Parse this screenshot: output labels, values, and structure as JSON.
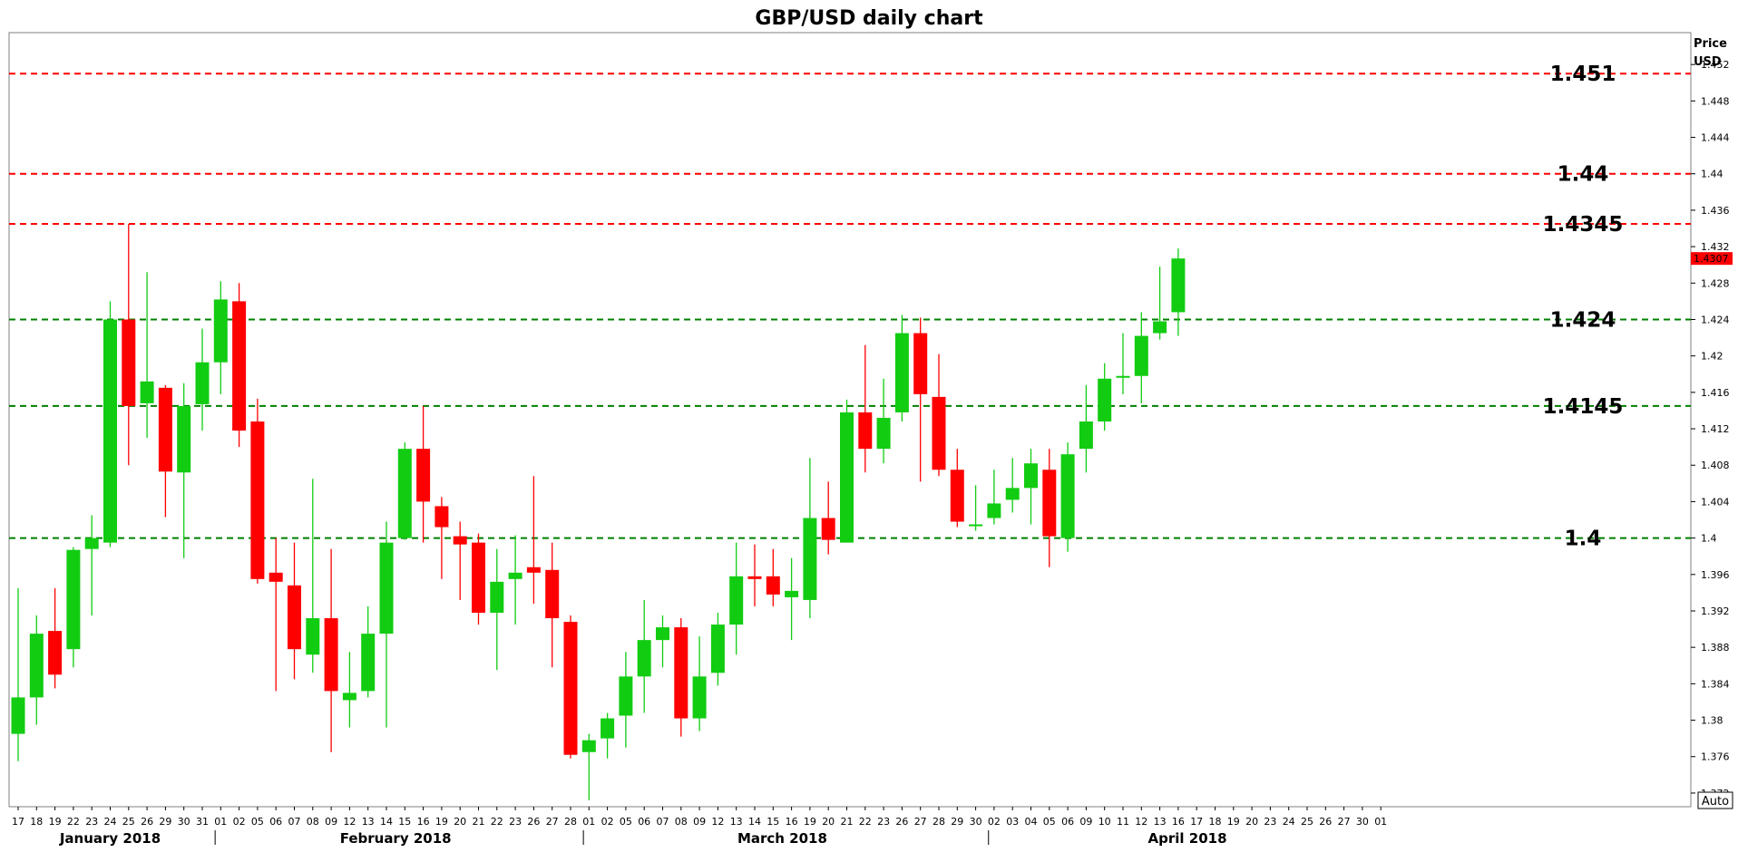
{
  "chart_data": {
    "type": "candlestick",
    "title": "GBP/USD daily chart",
    "ylabel": "Price\nUSD",
    "ylabel_line1": "Price",
    "ylabel_line2": "USD",
    "ylim": [
      1.3705,
      1.4555
    ],
    "y_ticks": [
      "1.372",
      "1.376",
      "1.38",
      "1.384",
      "1.388",
      "1.392",
      "1.396",
      "1.4",
      "1.404",
      "1.408",
      "1.412",
      "1.416",
      "1.42",
      "1.424",
      "1.428",
      "1.432",
      "1.436",
      "1.44",
      "1.444",
      "1.448",
      "1.452"
    ],
    "current_price": "1.4307",
    "auto_label": "Auto",
    "colors": {
      "up": "#12cc12",
      "down": "#ff0000",
      "support": "#008000",
      "resistance": "#ff0000",
      "current": "#ff0000"
    },
    "levels": [
      {
        "value": 1.451,
        "label": "1.451",
        "type": "resistance"
      },
      {
        "value": 1.44,
        "label": "1.44",
        "type": "resistance"
      },
      {
        "value": 1.4345,
        "label": "1.4345",
        "type": "resistance"
      },
      {
        "value": 1.424,
        "label": "1.424",
        "type": "support"
      },
      {
        "value": 1.4145,
        "label": "1.4145",
        "type": "support"
      },
      {
        "value": 1.4,
        "label": "1.4",
        "type": "support"
      }
    ],
    "x_labels": [
      "17",
      "18",
      "19",
      "22",
      "23",
      "24",
      "25",
      "26",
      "29",
      "30",
      "31",
      "01",
      "02",
      "05",
      "06",
      "07",
      "08",
      "09",
      "12",
      "13",
      "14",
      "15",
      "16",
      "19",
      "20",
      "21",
      "22",
      "23",
      "26",
      "27",
      "28",
      "01",
      "02",
      "05",
      "06",
      "07",
      "08",
      "09",
      "12",
      "13",
      "14",
      "15",
      "16",
      "19",
      "20",
      "21",
      "22",
      "23",
      "26",
      "27",
      "28",
      "29",
      "30",
      "02",
      "03",
      "04",
      "05",
      "06",
      "09",
      "10",
      "11",
      "12",
      "13",
      "16",
      "17",
      "18",
      "19",
      "20",
      "23",
      "24",
      "25",
      "26",
      "27",
      "30",
      "01"
    ],
    "months": [
      {
        "label": "January 2018",
        "start": 0,
        "end": 10
      },
      {
        "label": "February 2018",
        "start": 11,
        "end": 30
      },
      {
        "label": "March 2018",
        "start": 31,
        "end": 52
      },
      {
        "label": "April 2018",
        "start": 53,
        "end": 74
      }
    ],
    "candles": [
      {
        "date": "Jan 17",
        "open": 1.3785,
        "high": 1.3945,
        "low": 1.3755,
        "close": 1.3825
      },
      {
        "date": "Jan 18",
        "open": 1.3825,
        "high": 1.3915,
        "low": 1.3795,
        "close": 1.3895
      },
      {
        "date": "Jan 19",
        "open": 1.3898,
        "high": 1.3945,
        "low": 1.3835,
        "close": 1.385
      },
      {
        "date": "Jan 22",
        "open": 1.3878,
        "high": 1.399,
        "low": 1.3858,
        "close": 1.3987
      },
      {
        "date": "Jan 23",
        "open": 1.3988,
        "high": 1.4025,
        "low": 1.3915,
        "close": 1.4
      },
      {
        "date": "Jan 24",
        "open": 1.3995,
        "high": 1.426,
        "low": 1.399,
        "close": 1.424
      },
      {
        "date": "Jan 25",
        "open": 1.424,
        "high": 1.4345,
        "low": 1.408,
        "close": 1.4145
      },
      {
        "date": "Jan 26",
        "open": 1.4148,
        "high": 1.4292,
        "low": 1.411,
        "close": 1.4172
      },
      {
        "date": "Jan 29",
        "open": 1.4165,
        "high": 1.4168,
        "low": 1.4023,
        "close": 1.4073
      },
      {
        "date": "Jan 30",
        "open": 1.4072,
        "high": 1.417,
        "low": 1.3978,
        "close": 1.4145
      },
      {
        "date": "Jan 31",
        "open": 1.4147,
        "high": 1.423,
        "low": 1.4118,
        "close": 1.4193
      },
      {
        "date": "Feb 01",
        "open": 1.4193,
        "high": 1.4282,
        "low": 1.4158,
        "close": 1.4262
      },
      {
        "date": "Feb 02",
        "open": 1.426,
        "high": 1.428,
        "low": 1.41,
        "close": 1.4118
      },
      {
        "date": "Feb 05",
        "open": 1.4128,
        "high": 1.4153,
        "low": 1.395,
        "close": 1.3955
      },
      {
        "date": "Feb 06",
        "open": 1.3962,
        "high": 1.4,
        "low": 1.3832,
        "close": 1.3952
      },
      {
        "date": "Feb 07",
        "open": 1.3948,
        "high": 1.3995,
        "low": 1.3845,
        "close": 1.3878
      },
      {
        "date": "Feb 08",
        "open": 1.3872,
        "high": 1.4065,
        "low": 1.3852,
        "close": 1.3912
      },
      {
        "date": "Feb 09",
        "open": 1.3912,
        "high": 1.3988,
        "low": 1.3765,
        "close": 1.3832
      },
      {
        "date": "Feb 12",
        "open": 1.3822,
        "high": 1.3875,
        "low": 1.3792,
        "close": 1.383
      },
      {
        "date": "Feb 13",
        "open": 1.3832,
        "high": 1.3925,
        "low": 1.3825,
        "close": 1.3895
      },
      {
        "date": "Feb 14",
        "open": 1.3895,
        "high": 1.4018,
        "low": 1.3792,
        "close": 1.3995
      },
      {
        "date": "Feb 15",
        "open": 1.4,
        "high": 1.4105,
        "low": 1.3998,
        "close": 1.4098
      },
      {
        "date": "Feb 16",
        "open": 1.4098,
        "high": 1.4145,
        "low": 1.3995,
        "close": 1.404
      },
      {
        "date": "Feb 19",
        "open": 1.4035,
        "high": 1.4045,
        "low": 1.3955,
        "close": 1.4012
      },
      {
        "date": "Feb 20",
        "open": 1.4002,
        "high": 1.4018,
        "low": 1.3932,
        "close": 1.3993
      },
      {
        "date": "Feb 21",
        "open": 1.3995,
        "high": 1.4005,
        "low": 1.3905,
        "close": 1.3918
      },
      {
        "date": "Feb 22",
        "open": 1.3918,
        "high": 1.3988,
        "low": 1.3855,
        "close": 1.3952
      },
      {
        "date": "Feb 23",
        "open": 1.3955,
        "high": 1.4003,
        "low": 1.3905,
        "close": 1.3962
      },
      {
        "date": "Feb 26",
        "open": 1.3968,
        "high": 1.4068,
        "low": 1.3928,
        "close": 1.3962
      },
      {
        "date": "Feb 27",
        "open": 1.3965,
        "high": 1.3995,
        "low": 1.3858,
        "close": 1.3912
      },
      {
        "date": "Feb 28",
        "open": 1.3908,
        "high": 1.3915,
        "low": 1.3758,
        "close": 1.3762
      },
      {
        "date": "Mar 01",
        "open": 1.3765,
        "high": 1.3785,
        "low": 1.3712,
        "close": 1.3778
      },
      {
        "date": "Mar 02",
        "open": 1.378,
        "high": 1.3808,
        "low": 1.3758,
        "close": 1.3802
      },
      {
        "date": "Mar 05",
        "open": 1.3805,
        "high": 1.3875,
        "low": 1.377,
        "close": 1.3848
      },
      {
        "date": "Mar 06",
        "open": 1.3848,
        "high": 1.3932,
        "low": 1.3808,
        "close": 1.3888
      },
      {
        "date": "Mar 07",
        "open": 1.3888,
        "high": 1.3915,
        "low": 1.3858,
        "close": 1.3902
      },
      {
        "date": "Mar 08",
        "open": 1.3902,
        "high": 1.3912,
        "low": 1.3782,
        "close": 1.3802
      },
      {
        "date": "Mar 09",
        "open": 1.3802,
        "high": 1.3892,
        "low": 1.3788,
        "close": 1.3848
      },
      {
        "date": "Mar 12",
        "open": 1.3852,
        "high": 1.3918,
        "low": 1.3838,
        "close": 1.3905
      },
      {
        "date": "Mar 13",
        "open": 1.3905,
        "high": 1.3995,
        "low": 1.3872,
        "close": 1.3958
      },
      {
        "date": "Mar 14",
        "open": 1.3958,
        "high": 1.3993,
        "low": 1.3925,
        "close": 1.3955
      },
      {
        "date": "Mar 15",
        "open": 1.3958,
        "high": 1.3988,
        "low": 1.3925,
        "close": 1.3938
      },
      {
        "date": "Mar 16",
        "open": 1.3935,
        "high": 1.3978,
        "low": 1.3888,
        "close": 1.3942
      },
      {
        "date": "Mar 19",
        "open": 1.3932,
        "high": 1.4088,
        "low": 1.3912,
        "close": 1.4022
      },
      {
        "date": "Mar 20",
        "open": 1.4022,
        "high": 1.4062,
        "low": 1.3982,
        "close": 1.3998
      },
      {
        "date": "Mar 21",
        "open": 1.3995,
        "high": 1.4152,
        "low": 1.3995,
        "close": 1.4138
      },
      {
        "date": "Mar 22",
        "open": 1.4138,
        "high": 1.4212,
        "low": 1.4072,
        "close": 1.4098
      },
      {
        "date": "Mar 23",
        "open": 1.4098,
        "high": 1.4175,
        "low": 1.4082,
        "close": 1.4132
      },
      {
        "date": "Mar 26",
        "open": 1.4138,
        "high": 1.4245,
        "low": 1.4128,
        "close": 1.4225
      },
      {
        "date": "Mar 27",
        "open": 1.4225,
        "high": 1.4242,
        "low": 1.4062,
        "close": 1.4158
      },
      {
        "date": "Mar 28",
        "open": 1.4155,
        "high": 1.4202,
        "low": 1.4068,
        "close": 1.4075
      },
      {
        "date": "Mar 29",
        "open": 1.4075,
        "high": 1.4098,
        "low": 1.4012,
        "close": 1.4018
      },
      {
        "date": "Mar 30",
        "open": 1.4015,
        "high": 1.4058,
        "low": 1.4008,
        "close": 1.4015
      },
      {
        "date": "Apr 02",
        "open": 1.4022,
        "high": 1.4075,
        "low": 1.4015,
        "close": 1.4038
      },
      {
        "date": "Apr 03",
        "open": 1.4042,
        "high": 1.4088,
        "low": 1.4028,
        "close": 1.4055
      },
      {
        "date": "Apr 04",
        "open": 1.4055,
        "high": 1.4098,
        "low": 1.4015,
        "close": 1.4082
      },
      {
        "date": "Apr 05",
        "open": 1.4075,
        "high": 1.4098,
        "low": 1.3968,
        "close": 1.4002
      },
      {
        "date": "Apr 06",
        "open": 1.4,
        "high": 1.4105,
        "low": 1.3985,
        "close": 1.4092
      },
      {
        "date": "Apr 09",
        "open": 1.4098,
        "high": 1.4168,
        "low": 1.4072,
        "close": 1.4128
      },
      {
        "date": "Apr 10",
        "open": 1.4128,
        "high": 1.4192,
        "low": 1.4118,
        "close": 1.4175
      },
      {
        "date": "Apr 11",
        "open": 1.4178,
        "high": 1.4225,
        "low": 1.4158,
        "close": 1.4178
      },
      {
        "date": "Apr 12",
        "open": 1.4178,
        "high": 1.4248,
        "low": 1.4148,
        "close": 1.4222
      },
      {
        "date": "Apr 13",
        "open": 1.4225,
        "high": 1.4298,
        "low": 1.4218,
        "close": 1.4238
      },
      {
        "date": "Apr 16",
        "open": 1.4248,
        "high": 1.4318,
        "low": 1.4222,
        "close": 1.4307
      }
    ]
  }
}
